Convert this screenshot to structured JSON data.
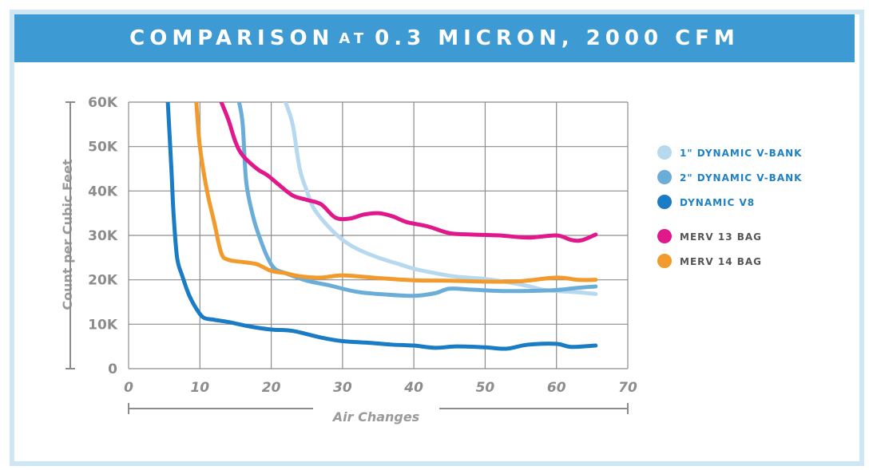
{
  "header": {
    "title_part1": "COMPARISON",
    "title_part2": "AT",
    "title_part3": "0.3 MICRON, 2000 CFM"
  },
  "colors": {
    "banner": "#3e9ad2",
    "frame": "#cfe6f5",
    "grid": "#8c8c8c"
  },
  "chart_data": {
    "type": "line",
    "title": "COMPARISON AT 0.3 MICRON, 2000 CFM",
    "xlabel": "Air Changes",
    "ylabel": "Count per Cubic Feet",
    "xlim": [
      0,
      70
    ],
    "ylim": [
      0,
      60000
    ],
    "x_ticks": [
      "0",
      "10",
      "20",
      "30",
      "40",
      "50",
      "60",
      "70"
    ],
    "y_ticks": [
      "0",
      "10K",
      "20K",
      "30K",
      "40K",
      "50K",
      "60K"
    ],
    "grid": true,
    "legend_position": "right",
    "series": [
      {
        "name": "1\" DYNAMIC V-BANK",
        "color": "#b7d9ef",
        "points": [
          [
            22.0,
            60000
          ],
          [
            23,
            55000
          ],
          [
            24,
            45000
          ],
          [
            25,
            40000
          ],
          [
            26,
            36000
          ],
          [
            28,
            32000
          ],
          [
            30,
            29000
          ],
          [
            32,
            27000
          ],
          [
            35,
            25000
          ],
          [
            38,
            23500
          ],
          [
            40,
            22500
          ],
          [
            43,
            21500
          ],
          [
            46,
            20700
          ],
          [
            50,
            20200
          ],
          [
            53,
            19500
          ],
          [
            56,
            18600
          ],
          [
            58,
            17800
          ],
          [
            60,
            17500
          ],
          [
            63,
            17200
          ],
          [
            65.5,
            16800
          ]
        ]
      },
      {
        "name": "2\" DYNAMIC V-BANK",
        "color": "#6badd9",
        "points": [
          [
            15.5,
            60000
          ],
          [
            16,
            55000
          ],
          [
            16.5,
            42000
          ],
          [
            17.5,
            34000
          ],
          [
            18.5,
            29000
          ],
          [
            19.5,
            25000
          ],
          [
            20.5,
            22500
          ],
          [
            22,
            21500
          ],
          [
            25,
            19800
          ],
          [
            28,
            18800
          ],
          [
            32,
            17300
          ],
          [
            36,
            16700
          ],
          [
            40,
            16400
          ],
          [
            43,
            17000
          ],
          [
            45,
            18000
          ],
          [
            48,
            17800
          ],
          [
            52,
            17500
          ],
          [
            56,
            17500
          ],
          [
            60,
            17700
          ],
          [
            63,
            18200
          ],
          [
            65.5,
            18500
          ]
        ]
      },
      {
        "name": "DYNAMIC V8",
        "color": "#1a7cc4",
        "points": [
          [
            5.5,
            60000
          ],
          [
            6,
            45000
          ],
          [
            6.3,
            35000
          ],
          [
            6.8,
            25000
          ],
          [
            7.5,
            21000
          ],
          [
            8.5,
            16500
          ],
          [
            9.5,
            13500
          ],
          [
            10.5,
            11500
          ],
          [
            12,
            11000
          ],
          [
            14,
            10500
          ],
          [
            17,
            9500
          ],
          [
            20,
            8800
          ],
          [
            23,
            8500
          ],
          [
            27,
            7000
          ],
          [
            30,
            6200
          ],
          [
            34,
            5800
          ],
          [
            37,
            5400
          ],
          [
            40,
            5200
          ],
          [
            43,
            4700
          ],
          [
            46,
            5000
          ],
          [
            50,
            4800
          ],
          [
            53,
            4500
          ],
          [
            56,
            5400
          ],
          [
            60,
            5600
          ],
          [
            62,
            4900
          ],
          [
            65.5,
            5200
          ]
        ]
      },
      {
        "name": "MERV 13 BAG",
        "color": "#e0188c",
        "points": [
          [
            13.0,
            60000
          ],
          [
            14,
            56000
          ],
          [
            15,
            51000
          ],
          [
            16,
            48000
          ],
          [
            18,
            45000
          ],
          [
            19.5,
            43500
          ],
          [
            21,
            41500
          ],
          [
            23,
            39000
          ],
          [
            25,
            38000
          ],
          [
            27,
            37000
          ],
          [
            29,
            34000
          ],
          [
            31,
            33800
          ],
          [
            33,
            34700
          ],
          [
            35,
            35000
          ],
          [
            37,
            34300
          ],
          [
            39,
            33000
          ],
          [
            42,
            32000
          ],
          [
            45,
            30500
          ],
          [
            48,
            30200
          ],
          [
            52,
            30000
          ],
          [
            56,
            29500
          ],
          [
            60,
            30000
          ],
          [
            62,
            29000
          ],
          [
            63.5,
            28900
          ],
          [
            65.5,
            30200
          ]
        ]
      },
      {
        "name": "MERV 14 BAG",
        "color": "#f39a2c",
        "points": [
          [
            9.5,
            60000
          ],
          [
            10,
            50000
          ],
          [
            11,
            40000
          ],
          [
            12,
            33000
          ],
          [
            13,
            26000
          ],
          [
            14,
            24500
          ],
          [
            16,
            24000
          ],
          [
            18,
            23500
          ],
          [
            20,
            22000
          ],
          [
            22,
            21500
          ],
          [
            24,
            20800
          ],
          [
            27,
            20500
          ],
          [
            30,
            21000
          ],
          [
            35,
            20400
          ],
          [
            40,
            19900
          ],
          [
            45,
            19800
          ],
          [
            50,
            19600
          ],
          [
            55,
            19700
          ],
          [
            60,
            20500
          ],
          [
            63,
            20000
          ],
          [
            65.5,
            20000
          ]
        ]
      }
    ]
  }
}
